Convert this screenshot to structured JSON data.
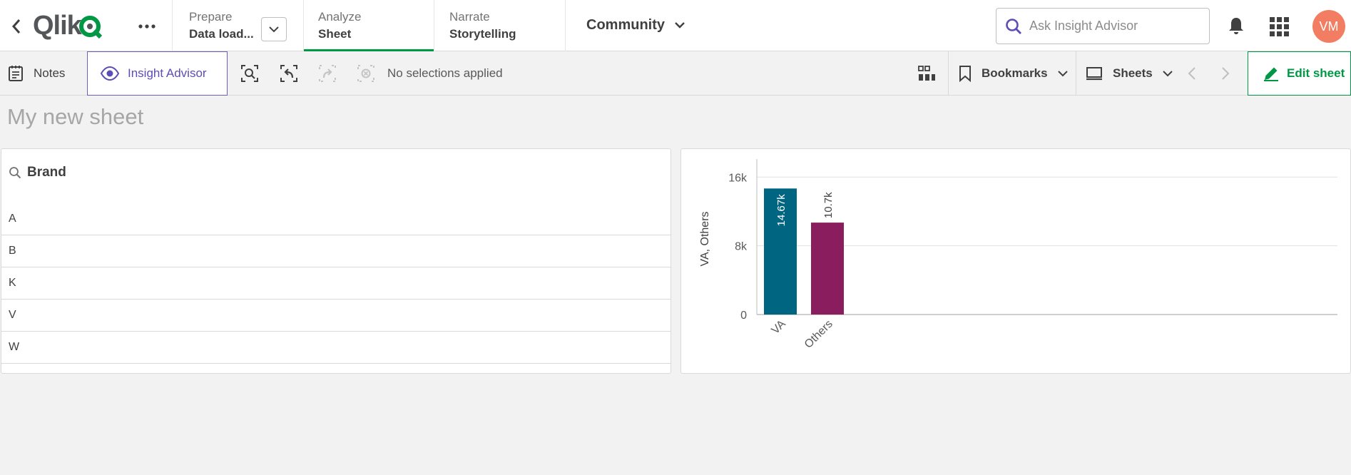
{
  "nav": {
    "logo": "Qlik",
    "tabs": [
      {
        "sup": "Prepare",
        "main": "Data load..."
      },
      {
        "sup": "Analyze",
        "main": "Sheet"
      },
      {
        "sup": "Narrate",
        "main": "Storytelling"
      }
    ],
    "space": "Community",
    "search_placeholder": "Ask Insight Advisor",
    "avatar_initials": "VM",
    "active_color": "#009845"
  },
  "toolbar": {
    "notes": "Notes",
    "insight_advisor": "Insight Advisor",
    "no_selections": "No selections applied",
    "bookmarks": "Bookmarks",
    "sheets": "Sheets",
    "edit_sheet": "Edit sheet"
  },
  "sheet": {
    "title": "My new sheet"
  },
  "filter": {
    "title": "Brand",
    "items": [
      "A",
      "B",
      "K",
      "V",
      "W"
    ]
  },
  "chart_data": {
    "type": "bar",
    "categories": [
      "VA",
      "Others"
    ],
    "values": [
      14670,
      10700
    ],
    "value_labels": [
      "14.67k",
      "10.7k"
    ],
    "colors": [
      "#006580",
      "#8a1d5e"
    ],
    "ylabel": "VA, Others",
    "yticks": [
      0,
      8000,
      16000
    ],
    "ytick_labels": [
      "0",
      "8k",
      "16k"
    ],
    "ylim": [
      0,
      17600
    ],
    "grid": true
  }
}
